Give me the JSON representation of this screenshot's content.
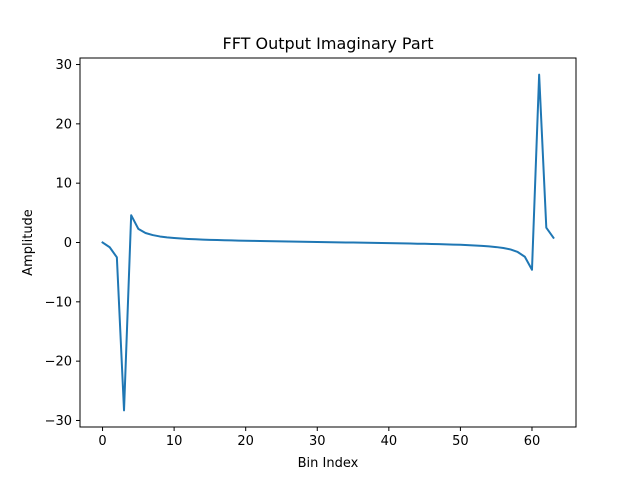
{
  "chart_data": {
    "type": "line",
    "title": "FFT Output Imaginary Part",
    "xlabel": "Bin Index",
    "ylabel": "Amplitude",
    "xlim": [
      -3.15,
      66.15
    ],
    "ylim": [
      -31.1,
      31.1
    ],
    "xticks": [
      0,
      10,
      20,
      30,
      40,
      50,
      60
    ],
    "yticks": [
      -30,
      -20,
      -10,
      0,
      10,
      20,
      30
    ],
    "grid": false,
    "series_color": "#1f77b4",
    "x": [
      0,
      1,
      2,
      3,
      4,
      5,
      6,
      7,
      8,
      9,
      10,
      11,
      12,
      13,
      14,
      15,
      16,
      17,
      18,
      19,
      20,
      21,
      22,
      23,
      24,
      25,
      26,
      27,
      28,
      29,
      30,
      31,
      32,
      33,
      34,
      35,
      36,
      37,
      38,
      39,
      40,
      41,
      42,
      43,
      44,
      45,
      46,
      47,
      48,
      49,
      50,
      51,
      52,
      53,
      54,
      55,
      56,
      57,
      58,
      59,
      60,
      61,
      62,
      63
    ],
    "y": [
      0,
      -0.8,
      -2.5,
      -28.3,
      4.6,
      2.3,
      1.6,
      1.25,
      1.02,
      0.87,
      0.76,
      0.67,
      0.6,
      0.54,
      0.49,
      0.45,
      0.42,
      0.38,
      0.35,
      0.32,
      0.3,
      0.27,
      0.25,
      0.23,
      0.21,
      0.19,
      0.17,
      0.15,
      0.13,
      0.11,
      0.09,
      0.07,
      0.05,
      0.03,
      0.01,
      -0.01,
      -0.03,
      -0.05,
      -0.07,
      -0.09,
      -0.11,
      -0.13,
      -0.15,
      -0.17,
      -0.2,
      -0.22,
      -0.25,
      -0.28,
      -0.31,
      -0.35,
      -0.39,
      -0.44,
      -0.5,
      -0.57,
      -0.66,
      -0.77,
      -0.93,
      -1.17,
      -1.6,
      -2.4,
      -4.6,
      28.3,
      2.5,
      0.8
    ]
  }
}
